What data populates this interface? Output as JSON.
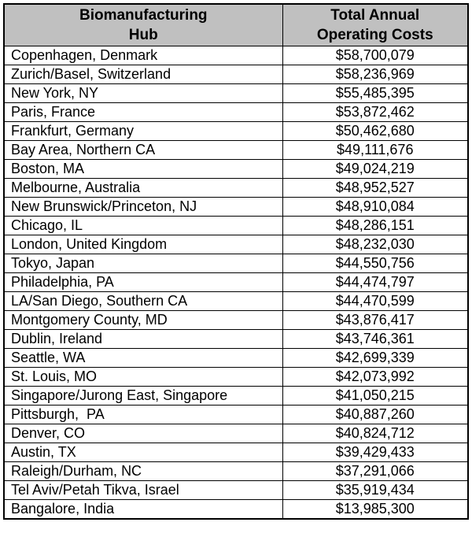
{
  "table": {
    "header": {
      "hub": "Biomanufacturing\nHub",
      "cost": "Total Annual\nOperating Costs"
    },
    "header_bg_color": "#c0c0c0",
    "border_color": "#000000",
    "rows": [
      {
        "hub": "Copenhagen, Denmark",
        "cost": "$58,700,079"
      },
      {
        "hub": "Zurich/Basel, Switzerland",
        "cost": "$58,236,969"
      },
      {
        "hub": "New York, NY",
        "cost": "$55,485,395"
      },
      {
        "hub": "Paris, France",
        "cost": "$53,872,462"
      },
      {
        "hub": "Frankfurt, Germany",
        "cost": "$50,462,680"
      },
      {
        "hub": "Bay Area, Northern CA",
        "cost": "$49,111,676"
      },
      {
        "hub": "Boston, MA",
        "cost": "$49,024,219"
      },
      {
        "hub": "Melbourne, Australia",
        "cost": "$48,952,527"
      },
      {
        "hub": "New Brunswick/Princeton, NJ",
        "cost": "$48,910,084"
      },
      {
        "hub": "Chicago, IL",
        "cost": "$48,286,151"
      },
      {
        "hub": "London, United Kingdom",
        "cost": "$48,232,030"
      },
      {
        "hub": "Tokyo, Japan",
        "cost": "$44,550,756"
      },
      {
        "hub": "Philadelphia, PA",
        "cost": "$44,474,797"
      },
      {
        "hub": "LA/San Diego, Southern CA",
        "cost": "$44,470,599"
      },
      {
        "hub": "Montgomery County, MD",
        "cost": "$43,876,417"
      },
      {
        "hub": "Dublin, Ireland",
        "cost": "$43,746,361"
      },
      {
        "hub": "Seattle, WA",
        "cost": "$42,699,339"
      },
      {
        "hub": "St. Louis, MO",
        "cost": "$42,073,992"
      },
      {
        "hub": "Singapore/Jurong East, Singapore",
        "cost": "$41,050,215"
      },
      {
        "hub": "Pittsburgh,  PA",
        "cost": "$40,887,260"
      },
      {
        "hub": "Denver, CO",
        "cost": "$40,824,712"
      },
      {
        "hub": "Austin, TX",
        "cost": "$39,429,433"
      },
      {
        "hub": "Raleigh/Durham, NC",
        "cost": "$37,291,066"
      },
      {
        "hub": "Tel Aviv/Petah Tikva, Israel",
        "cost": "$35,919,434"
      },
      {
        "hub": "Bangalore, India",
        "cost": "$13,985,300"
      }
    ]
  }
}
